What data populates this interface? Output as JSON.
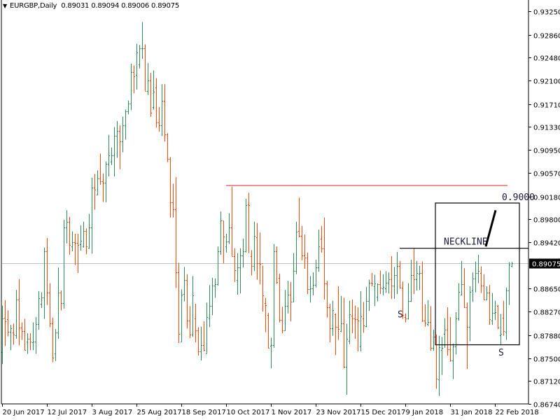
{
  "header": {
    "menu_icon": "triangle-down-icon",
    "symbol": "EURGBP,Daily",
    "ohlc": "0.89031 0.89094 0.89006 0.89075"
  },
  "chart_data": {
    "type": "ohlc-bar",
    "symbol": "EURGBP",
    "timeframe": "Daily",
    "colors": {
      "up": "#2e8b57",
      "down": "#ff4500",
      "bid_line": "#c0c0c0",
      "resistance": "#e8202a",
      "annotation": "#000000"
    },
    "current_price": 0.89075,
    "current_price_label": "0.89075",
    "ylim": [
      0.8674,
      0.9325
    ],
    "y_ticks": [
      "0.93250",
      "0.92860",
      "0.92480",
      "0.92100",
      "0.91710",
      "0.91330",
      "0.90950",
      "0.90570",
      "0.90180",
      "0.89800",
      "0.89420",
      "0.88650",
      "0.88270",
      "0.87880",
      "0.87500",
      "0.87120",
      "0.86740"
    ],
    "x_ticks": [
      {
        "label": "20 Jun 2017",
        "bar": 0
      },
      {
        "label": "12 Jul 2017",
        "bar": 16
      },
      {
        "label": "3 Aug 2017",
        "bar": 32
      },
      {
        "label": "25 Aug 2017",
        "bar": 48
      },
      {
        "label": "18 Sep 2017",
        "bar": 64
      },
      {
        "label": "10 Oct 2017",
        "bar": 80
      },
      {
        "label": "1 Nov 2017",
        "bar": 96
      },
      {
        "label": "23 Nov 2017",
        "bar": 112
      },
      {
        "label": "15 Dec 2017",
        "bar": 128
      },
      {
        "label": "9 Jan 2018",
        "bar": 144
      },
      {
        "label": "31 Jan 2018",
        "bar": 160
      },
      {
        "label": "22 Feb 2018",
        "bar": 176
      }
    ],
    "bars_ohlc": [
      [
        0.876,
        0.8837,
        0.874,
        0.8816
      ],
      [
        0.8817,
        0.8846,
        0.877,
        0.8811
      ],
      [
        0.8814,
        0.8829,
        0.8786,
        0.8793
      ],
      [
        0.8793,
        0.8805,
        0.8763,
        0.8799
      ],
      [
        0.8792,
        0.8807,
        0.8772,
        0.8789
      ],
      [
        0.8788,
        0.8863,
        0.8782,
        0.8847
      ],
      [
        0.8847,
        0.8881,
        0.8771,
        0.8801
      ],
      [
        0.8801,
        0.8809,
        0.878,
        0.8795
      ],
      [
        0.8795,
        0.8815,
        0.8763,
        0.8763
      ],
      [
        0.8777,
        0.8791,
        0.8757,
        0.8782
      ],
      [
        0.8782,
        0.8791,
        0.8763,
        0.8777
      ],
      [
        0.8776,
        0.8809,
        0.8763,
        0.8777
      ],
      [
        0.8777,
        0.8818,
        0.8757,
        0.8806
      ],
      [
        0.8806,
        0.8861,
        0.8797,
        0.8849
      ],
      [
        0.884,
        0.8859,
        0.8833,
        0.885
      ],
      [
        0.885,
        0.8933,
        0.8815,
        0.8927
      ],
      [
        0.8927,
        0.8949,
        0.8838,
        0.8858
      ],
      [
        0.8858,
        0.8874,
        0.8801,
        0.8808
      ],
      [
        0.8808,
        0.8817,
        0.8743,
        0.8751
      ],
      [
        0.8757,
        0.8798,
        0.8745,
        0.8792
      ],
      [
        0.8792,
        0.89,
        0.8782,
        0.8859
      ],
      [
        0.8859,
        0.8862,
        0.8829,
        0.8841
      ],
      [
        0.8841,
        0.8979,
        0.8832,
        0.8966
      ],
      [
        0.8966,
        0.8995,
        0.894,
        0.8976
      ],
      [
        0.8976,
        0.8984,
        0.8921,
        0.8937
      ],
      [
        0.8935,
        0.896,
        0.8927,
        0.8942
      ],
      [
        0.8942,
        0.8956,
        0.8904,
        0.8941
      ],
      [
        0.8941,
        0.8956,
        0.8891,
        0.8937
      ],
      [
        0.8938,
        0.897,
        0.8928,
        0.8944
      ],
      [
        0.8935,
        0.8976,
        0.8933,
        0.8961
      ],
      [
        0.8961,
        0.8965,
        0.8922,
        0.8935
      ],
      [
        0.8933,
        0.8989,
        0.8931,
        0.8966
      ],
      [
        0.8966,
        0.9049,
        0.8923,
        0.9032
      ],
      [
        0.9032,
        0.9055,
        0.8996,
        0.9029
      ],
      [
        0.9021,
        0.9061,
        0.902,
        0.9048
      ],
      [
        0.9048,
        0.9089,
        0.9037,
        0.9043
      ],
      [
        0.9043,
        0.9056,
        0.9009,
        0.9041
      ],
      [
        0.9041,
        0.9076,
        0.9008,
        0.9072
      ],
      [
        0.9072,
        0.912,
        0.9051,
        0.9086
      ],
      [
        0.9076,
        0.9099,
        0.907,
        0.9086
      ],
      [
        0.9086,
        0.9133,
        0.9051,
        0.9118
      ],
      [
        0.9118,
        0.9143,
        0.9082,
        0.9127
      ],
      [
        0.9127,
        0.9136,
        0.9063,
        0.9109
      ],
      [
        0.9109,
        0.915,
        0.9091,
        0.9136
      ],
      [
        0.9136,
        0.9162,
        0.9112,
        0.9159
      ],
      [
        0.9159,
        0.9177,
        0.9154,
        0.9172
      ],
      [
        0.9172,
        0.9238,
        0.9161,
        0.9224
      ],
      [
        0.9224,
        0.9235,
        0.9189,
        0.9217
      ],
      [
        0.9219,
        0.9271,
        0.9195,
        0.9257
      ],
      [
        0.9237,
        0.9269,
        0.923,
        0.9263
      ],
      [
        0.9263,
        0.9307,
        0.9246,
        0.9264
      ],
      [
        0.9264,
        0.927,
        0.9193,
        0.9193
      ],
      [
        0.9193,
        0.9239,
        0.9186,
        0.921
      ],
      [
        0.921,
        0.9223,
        0.915,
        0.9157
      ],
      [
        0.9166,
        0.9227,
        0.9162,
        0.9192
      ],
      [
        0.9199,
        0.9214,
        0.9132,
        0.914
      ],
      [
        0.914,
        0.9166,
        0.9125,
        0.9136
      ],
      [
        0.9136,
        0.9204,
        0.9118,
        0.9177
      ],
      [
        0.9177,
        0.9204,
        0.9109,
        0.9121
      ],
      [
        0.9121,
        0.9123,
        0.9075,
        0.908
      ],
      [
        0.908,
        0.9083,
        0.8983,
        0.9008
      ],
      [
        0.9008,
        0.9039,
        0.8983,
        0.8997
      ],
      [
        0.8997,
        0.905,
        0.8866,
        0.8892
      ],
      [
        0.8892,
        0.8908,
        0.8775,
        0.879
      ],
      [
        0.8777,
        0.8864,
        0.8777,
        0.8855
      ],
      [
        0.8856,
        0.8901,
        0.8844,
        0.8879
      ],
      [
        0.8879,
        0.8889,
        0.8799,
        0.8812
      ],
      [
        0.8812,
        0.8836,
        0.8783,
        0.8789
      ],
      [
        0.8789,
        0.8886,
        0.8785,
        0.8854
      ],
      [
        0.8816,
        0.884,
        0.8776,
        0.8796
      ],
      [
        0.8796,
        0.8801,
        0.8754,
        0.8761
      ],
      [
        0.8761,
        0.8802,
        0.8746,
        0.8772
      ],
      [
        0.8772,
        0.8811,
        0.8761,
        0.8763
      ],
      [
        0.8758,
        0.8842,
        0.8758,
        0.8818
      ],
      [
        0.8816,
        0.8871,
        0.8801,
        0.8836
      ],
      [
        0.8836,
        0.8883,
        0.8821,
        0.887
      ],
      [
        0.887,
        0.8882,
        0.885,
        0.8873
      ],
      [
        0.8873,
        0.8935,
        0.887,
        0.8927
      ],
      [
        0.8927,
        0.8993,
        0.8921,
        0.8978
      ],
      [
        0.8978,
        0.8977,
        0.8907,
        0.8951
      ],
      [
        0.8935,
        0.8956,
        0.8925,
        0.8943
      ],
      [
        0.8943,
        0.899,
        0.8939,
        0.8967
      ],
      [
        0.8967,
        0.9034,
        0.8919,
        0.8919
      ],
      [
        0.8919,
        0.8932,
        0.8876,
        0.8896
      ],
      [
        0.8879,
        0.8924,
        0.8855,
        0.89
      ],
      [
        0.89,
        0.8932,
        0.8857,
        0.892
      ],
      [
        0.892,
        0.8948,
        0.89,
        0.8927
      ],
      [
        0.8927,
        0.9014,
        0.8925,
        0.9004
      ],
      [
        0.9005,
        0.9024,
        0.8924,
        0.9003
      ],
      [
        0.8919,
        0.8929,
        0.8887,
        0.8903
      ],
      [
        0.8903,
        0.8976,
        0.8894,
        0.8953
      ],
      [
        0.895,
        0.8974,
        0.888,
        0.8907
      ],
      [
        0.8907,
        0.8958,
        0.8872,
        0.8906
      ],
      [
        0.8907,
        0.8903,
        0.8827,
        0.8854
      ],
      [
        0.8841,
        0.885,
        0.8793,
        0.8838
      ],
      [
        0.8821,
        0.8825,
        0.8766,
        0.8767
      ],
      [
        0.877,
        0.8784,
        0.8733,
        0.8771
      ],
      [
        0.8771,
        0.8939,
        0.8767,
        0.8927
      ],
      [
        0.8927,
        0.8935,
        0.8873,
        0.8876
      ],
      [
        0.8883,
        0.889,
        0.8809,
        0.8813
      ],
      [
        0.8813,
        0.8835,
        0.8791,
        0.8796
      ],
      [
        0.8796,
        0.8863,
        0.8795,
        0.8837
      ],
      [
        0.8837,
        0.8878,
        0.8824,
        0.8855
      ],
      [
        0.8855,
        0.8876,
        0.8811,
        0.8843
      ],
      [
        0.8843,
        0.8924,
        0.8843,
        0.8895
      ],
      [
        0.8895,
        0.8976,
        0.8889,
        0.896
      ],
      [
        0.8961,
        0.9016,
        0.895,
        0.8953
      ],
      [
        0.8953,
        0.8969,
        0.8912,
        0.892
      ],
      [
        0.892,
        0.8955,
        0.8898,
        0.8917
      ],
      [
        0.8917,
        0.8925,
        0.8856,
        0.8864
      ],
      [
        0.8864,
        0.8886,
        0.8842,
        0.8866
      ],
      [
        0.8866,
        0.8892,
        0.8854,
        0.8871
      ],
      [
        0.8871,
        0.8913,
        0.8867,
        0.89
      ],
      [
        0.89,
        0.8963,
        0.8893,
        0.8935
      ],
      [
        0.8948,
        0.8969,
        0.8925,
        0.8932
      ],
      [
        0.8932,
        0.8983,
        0.8847,
        0.8874
      ],
      [
        0.8874,
        0.8878,
        0.8817,
        0.8834
      ],
      [
        0.8834,
        0.884,
        0.8776,
        0.8799
      ],
      [
        0.8799,
        0.8845,
        0.8787,
        0.883
      ],
      [
        0.8822,
        0.8824,
        0.8755,
        0.8802
      ],
      [
        0.8802,
        0.8869,
        0.878,
        0.8798
      ],
      [
        0.8795,
        0.8853,
        0.8793,
        0.8807
      ],
      [
        0.8807,
        0.885,
        0.8733,
        0.8736
      ],
      [
        0.8736,
        0.8807,
        0.8689,
        0.8782
      ],
      [
        0.8779,
        0.8845,
        0.8773,
        0.8822
      ],
      [
        0.882,
        0.8847,
        0.8791,
        0.8816
      ],
      [
        0.8816,
        0.8837,
        0.8782,
        0.8814
      ],
      [
        0.8814,
        0.8834,
        0.8761,
        0.8812
      ],
      [
        0.8769,
        0.8861,
        0.8761,
        0.8819
      ],
      [
        0.8816,
        0.8843,
        0.8792,
        0.8804
      ],
      [
        0.8803,
        0.8868,
        0.8801,
        0.8845
      ],
      [
        0.8845,
        0.888,
        0.8828,
        0.8875
      ],
      [
        0.8875,
        0.8891,
        0.8869,
        0.8874
      ],
      [
        0.8869,
        0.8888,
        0.8836,
        0.8874
      ],
      [
        0.8852,
        0.8874,
        0.8844,
        0.8872
      ],
      [
        0.8872,
        0.8895,
        0.8856,
        0.8867
      ],
      [
        0.8866,
        0.8889,
        0.8854,
        0.8868
      ],
      [
        0.8866,
        0.8894,
        0.8858,
        0.8875
      ],
      [
        0.8875,
        0.8892,
        0.8857,
        0.888
      ],
      [
        0.888,
        0.8919,
        0.8848,
        0.887
      ],
      [
        0.887,
        0.8901,
        0.8848,
        0.8888
      ],
      [
        0.8888,
        0.8926,
        0.8856,
        0.8903
      ],
      [
        0.8903,
        0.8911,
        0.8865,
        0.8867
      ],
      [
        0.8867,
        0.8877,
        0.8815,
        0.8821
      ],
      [
        0.8818,
        0.8824,
        0.8809,
        0.8815
      ],
      [
        0.8815,
        0.8874,
        0.8814,
        0.8845
      ],
      [
        0.8845,
        0.8913,
        0.8843,
        0.8887
      ],
      [
        0.8887,
        0.8932,
        0.8856,
        0.888
      ],
      [
        0.888,
        0.8911,
        0.8862,
        0.8891
      ],
      [
        0.889,
        0.8903,
        0.8863,
        0.8891
      ],
      [
        0.8891,
        0.891,
        0.881,
        0.8812
      ],
      [
        0.8812,
        0.8839,
        0.8802,
        0.8809
      ],
      [
        0.8806,
        0.8846,
        0.8803,
        0.881
      ],
      [
        0.881,
        0.8836,
        0.8762,
        0.8767
      ],
      [
        0.8767,
        0.8797,
        0.8762,
        0.8785
      ],
      [
        0.8785,
        0.8789,
        0.8699,
        0.8716
      ],
      [
        0.8715,
        0.8787,
        0.8687,
        0.8768
      ],
      [
        0.8763,
        0.8785,
        0.8722,
        0.8767
      ],
      [
        0.879,
        0.8816,
        0.8767,
        0.8797
      ],
      [
        0.8797,
        0.8834,
        0.8754,
        0.8764
      ],
      [
        0.8764,
        0.8818,
        0.8744,
        0.8746
      ],
      [
        0.8746,
        0.8774,
        0.8715,
        0.8769
      ],
      [
        0.8769,
        0.8826,
        0.8756,
        0.8816
      ],
      [
        0.8816,
        0.8874,
        0.8812,
        0.886
      ],
      [
        0.8855,
        0.8911,
        0.8854,
        0.8872
      ],
      [
        0.8872,
        0.8899,
        0.8833,
        0.8834
      ],
      [
        0.8834,
        0.8842,
        0.8732,
        0.8802
      ],
      [
        0.8802,
        0.8869,
        0.8778,
        0.886
      ],
      [
        0.8862,
        0.8892,
        0.8843,
        0.8882
      ],
      [
        0.8882,
        0.891,
        0.8859,
        0.8891
      ],
      [
        0.8891,
        0.8921,
        0.8874,
        0.8895
      ],
      [
        0.8891,
        0.8902,
        0.8858,
        0.887
      ],
      [
        0.887,
        0.8889,
        0.8846,
        0.8847
      ],
      [
        0.8847,
        0.8869,
        0.8846,
        0.8858
      ],
      [
        0.8858,
        0.8871,
        0.8805,
        0.8814
      ],
      [
        0.8812,
        0.8858,
        0.8805,
        0.8825
      ],
      [
        0.8825,
        0.8845,
        0.8813,
        0.8826
      ],
      [
        0.8836,
        0.8838,
        0.8798,
        0.88
      ],
      [
        0.8788,
        0.8823,
        0.8771,
        0.879
      ],
      [
        0.8817,
        0.8845,
        0.8787,
        0.8795
      ],
      [
        0.8794,
        0.8867,
        0.878,
        0.8862
      ],
      [
        0.8862,
        0.8909,
        0.8838,
        0.8905
      ],
      [
        0.89031,
        0.89094,
        0.89006,
        0.89075
      ]
    ],
    "annotations": {
      "resistance_line": {
        "price": 0.9036,
        "from_bar": 80,
        "to_bar": 180.5
      },
      "neckline": {
        "price": 0.8932,
        "from_bar": 142,
        "to_bar": 188,
        "label": "NECKLINE"
      },
      "target_box": {
        "from_bar": 154.75,
        "to_bar": 184.75,
        "top": 0.9007,
        "bottom": 0.8772
      },
      "arrow_line": {
        "from_bar": 172.75,
        "from_price": 0.8935,
        "to_bar": 176.25,
        "to_price": 0.8995
      },
      "target_label": "0.9000",
      "shoulder_labels": [
        {
          "text": "S",
          "bar": 142,
          "price": 0.8823
        },
        {
          "text": "S",
          "bar": 178,
          "price": 0.876
        }
      ]
    }
  }
}
